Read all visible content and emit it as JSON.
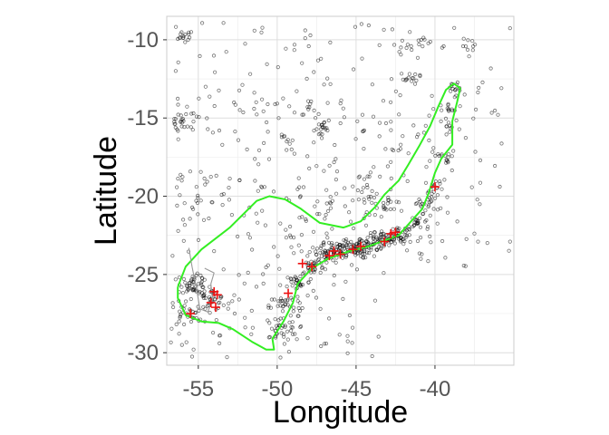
{
  "chart_data": {
    "type": "scatter",
    "title": "",
    "xlabel": "Longitude",
    "ylabel": "Latitude",
    "xlim": [
      -57.0,
      -35.0
    ],
    "ylim": [
      -30.8,
      -8.5
    ],
    "x_ticks": [
      -55,
      -50,
      -45,
      -40
    ],
    "x_tick_labels": [
      "-55",
      "-50",
      "-45",
      "-40"
    ],
    "y_ticks": [
      -10,
      -15,
      -20,
      -25,
      -30
    ],
    "y_tick_labels": [
      "-10",
      "-15",
      "-20",
      "-25",
      "-30"
    ],
    "grid": true,
    "legend": "none",
    "colors": {
      "panel_border": "#cccccc",
      "grid_major": "#dedede",
      "grid_minor": "#f0f0f0",
      "points": "#000000",
      "range_outline": "#33ee22",
      "crosses": "#ee1111",
      "secondary_outline": "#999999"
    },
    "series": [
      {
        "kind": "outline",
        "color": "#33ee22",
        "points": [
          [
            -56.3,
            -25.8
          ],
          [
            -55.8,
            -24.5
          ],
          [
            -54.8,
            -23.4
          ],
          [
            -53.0,
            -22.0
          ],
          [
            -51.3,
            -20.3
          ],
          [
            -50.5,
            -20.0
          ],
          [
            -49.5,
            -20.2
          ],
          [
            -48.5,
            -20.8
          ],
          [
            -47.3,
            -21.7
          ],
          [
            -45.8,
            -22.0
          ],
          [
            -44.7,
            -21.6
          ],
          [
            -43.8,
            -20.7
          ],
          [
            -43.2,
            -19.9
          ],
          [
            -42.3,
            -19.0
          ],
          [
            -41.7,
            -18.0
          ],
          [
            -41.0,
            -16.8
          ],
          [
            -40.3,
            -15.5
          ],
          [
            -39.8,
            -14.3
          ],
          [
            -39.3,
            -13.2
          ],
          [
            -38.8,
            -12.8
          ],
          [
            -38.4,
            -13.1
          ],
          [
            -38.6,
            -14.0
          ],
          [
            -38.9,
            -15.2
          ],
          [
            -38.9,
            -16.7
          ],
          [
            -39.6,
            -17.6
          ],
          [
            -40.0,
            -18.5
          ],
          [
            -40.4,
            -19.8
          ],
          [
            -40.8,
            -20.8
          ],
          [
            -41.6,
            -21.7
          ],
          [
            -42.3,
            -22.5
          ],
          [
            -43.4,
            -22.9
          ],
          [
            -44.2,
            -23.2
          ],
          [
            -45.4,
            -23.5
          ],
          [
            -46.8,
            -24.0
          ],
          [
            -47.8,
            -24.6
          ],
          [
            -48.7,
            -25.6
          ],
          [
            -49.0,
            -26.8
          ],
          [
            -49.6,
            -28.0
          ],
          [
            -50.3,
            -29.1
          ],
          [
            -50.2,
            -29.8
          ],
          [
            -50.7,
            -29.8
          ],
          [
            -51.6,
            -29.3
          ],
          [
            -52.8,
            -28.5
          ],
          [
            -53.7,
            -28.1
          ],
          [
            -54.8,
            -28.0
          ],
          [
            -55.8,
            -27.6
          ],
          [
            -56.3,
            -26.5
          ],
          [
            -56.3,
            -25.8
          ]
        ]
      },
      {
        "kind": "outline",
        "color": "#999999",
        "points": [
          [
            -55.6,
            -23.3
          ],
          [
            -55.4,
            -24.5
          ],
          [
            -55.1,
            -26.0
          ],
          [
            -54.9,
            -27.2
          ],
          [
            -54.4,
            -27.4
          ],
          [
            -54.1,
            -26.6
          ],
          [
            -54.2,
            -25.6
          ],
          [
            -54.0,
            -24.9
          ],
          [
            -54.6,
            -24.6
          ]
        ]
      },
      {
        "kind": "crosses",
        "color": "#ee1111",
        "points": [
          [
            -54.2,
            -26.8
          ],
          [
            -54.0,
            -26.1
          ],
          [
            -53.9,
            -27.1
          ],
          [
            -53.8,
            -26.3
          ],
          [
            -55.5,
            -27.5
          ],
          [
            -49.3,
            -26.2
          ],
          [
            -48.4,
            -24.3
          ],
          [
            -47.8,
            -24.5
          ],
          [
            -46.7,
            -23.8
          ],
          [
            -46.4,
            -23.5
          ],
          [
            -46.0,
            -23.7
          ],
          [
            -45.2,
            -23.4
          ],
          [
            -44.7,
            -23.2
          ],
          [
            -43.2,
            -22.9
          ],
          [
            -42.8,
            -22.4
          ],
          [
            -42.5,
            -22.3
          ],
          [
            -40.0,
            -19.4
          ]
        ]
      }
    ],
    "point_clusters": [
      {
        "x": -55.9,
        "y": -9.8,
        "n": 14,
        "s": 0.3
      },
      {
        "x": -55.9,
        "y": -15.3,
        "n": 26,
        "s": 0.6
      },
      {
        "x": -55.3,
        "y": -25.6,
        "n": 40,
        "s": 0.4
      },
      {
        "x": -54.3,
        "y": -26.6,
        "n": 40,
        "s": 0.5
      },
      {
        "x": -55.8,
        "y": -27.6,
        "n": 20,
        "s": 0.5
      },
      {
        "x": -49.9,
        "y": -28.5,
        "n": 30,
        "s": 0.6
      },
      {
        "x": -49.5,
        "y": -27.0,
        "n": 25,
        "s": 0.5
      },
      {
        "x": -48.7,
        "y": -25.5,
        "n": 25,
        "s": 0.4
      },
      {
        "x": -47.8,
        "y": -24.5,
        "n": 25,
        "s": 0.4
      },
      {
        "x": -47.0,
        "y": -23.6,
        "n": 40,
        "s": 0.5
      },
      {
        "x": -46.0,
        "y": -23.4,
        "n": 45,
        "s": 0.4
      },
      {
        "x": -45.0,
        "y": -23.4,
        "n": 45,
        "s": 0.4
      },
      {
        "x": -44.0,
        "y": -23.0,
        "n": 40,
        "s": 0.4
      },
      {
        "x": -43.0,
        "y": -22.7,
        "n": 40,
        "s": 0.4
      },
      {
        "x": -42.0,
        "y": -22.6,
        "n": 25,
        "s": 0.4
      },
      {
        "x": -41.0,
        "y": -21.7,
        "n": 20,
        "s": 0.4
      },
      {
        "x": -40.5,
        "y": -20.5,
        "n": 20,
        "s": 0.4
      },
      {
        "x": -40.0,
        "y": -19.4,
        "n": 15,
        "s": 0.3
      },
      {
        "x": -39.4,
        "y": -17.5,
        "n": 12,
        "s": 0.3
      },
      {
        "x": -39.1,
        "y": -15.5,
        "n": 10,
        "s": 0.3
      },
      {
        "x": -39.2,
        "y": -14.5,
        "n": 10,
        "s": 0.3
      },
      {
        "x": -38.8,
        "y": -13.0,
        "n": 15,
        "s": 0.4
      },
      {
        "x": -37.7,
        "y": -10.4,
        "n": 10,
        "s": 0.3
      },
      {
        "x": -40.8,
        "y": -10.2,
        "n": 8,
        "s": 0.3
      },
      {
        "x": -42.0,
        "y": -10.4,
        "n": 6,
        "s": 0.3
      },
      {
        "x": -41.6,
        "y": -12.5,
        "n": 12,
        "s": 0.3
      },
      {
        "x": -47.0,
        "y": -15.7,
        "n": 14,
        "s": 0.3
      },
      {
        "x": -48.0,
        "y": -14.2,
        "n": 8,
        "s": 0.3
      },
      {
        "x": -49.3,
        "y": -16.5,
        "n": 8,
        "s": 0.3
      },
      {
        "x": -44.0,
        "y": -19.9,
        "n": 20,
        "s": 0.6
      },
      {
        "x": -43.3,
        "y": -20.7,
        "n": 12,
        "s": 0.4
      },
      {
        "x": -46.5,
        "y": -20.5,
        "n": 6,
        "s": 0.3
      },
      {
        "x": -55.5,
        "y": -20.4,
        "n": 8,
        "s": 0.4
      }
    ],
    "scattered_points": 560
  }
}
